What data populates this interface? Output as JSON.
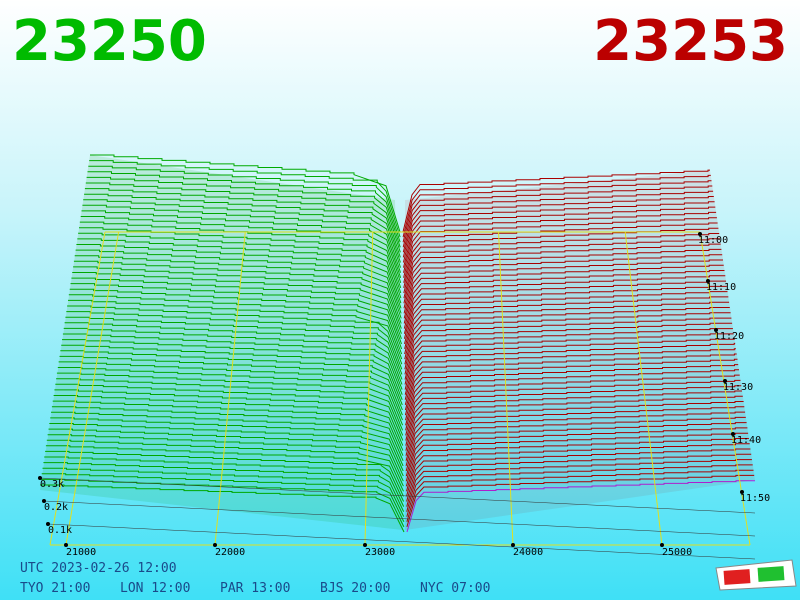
{
  "header": {
    "bid": "23250",
    "ask": "23253"
  },
  "price_axis": [
    "21000",
    "22000",
    "23000",
    "24000",
    "25000"
  ],
  "depth_axis": [
    "0.3k",
    "0.2k",
    "0.1k"
  ],
  "time_axis": [
    "11:00",
    "11:10",
    "11:20",
    "11:30",
    "11:40",
    "11:50"
  ],
  "footer": {
    "utc": "UTC 2023-02-26 12:00",
    "clocks": [
      "TYO 21:00",
      "LON 12:00",
      "PAR 13:00",
      "BJS 20:00",
      "NYC 07:00"
    ]
  }
}
